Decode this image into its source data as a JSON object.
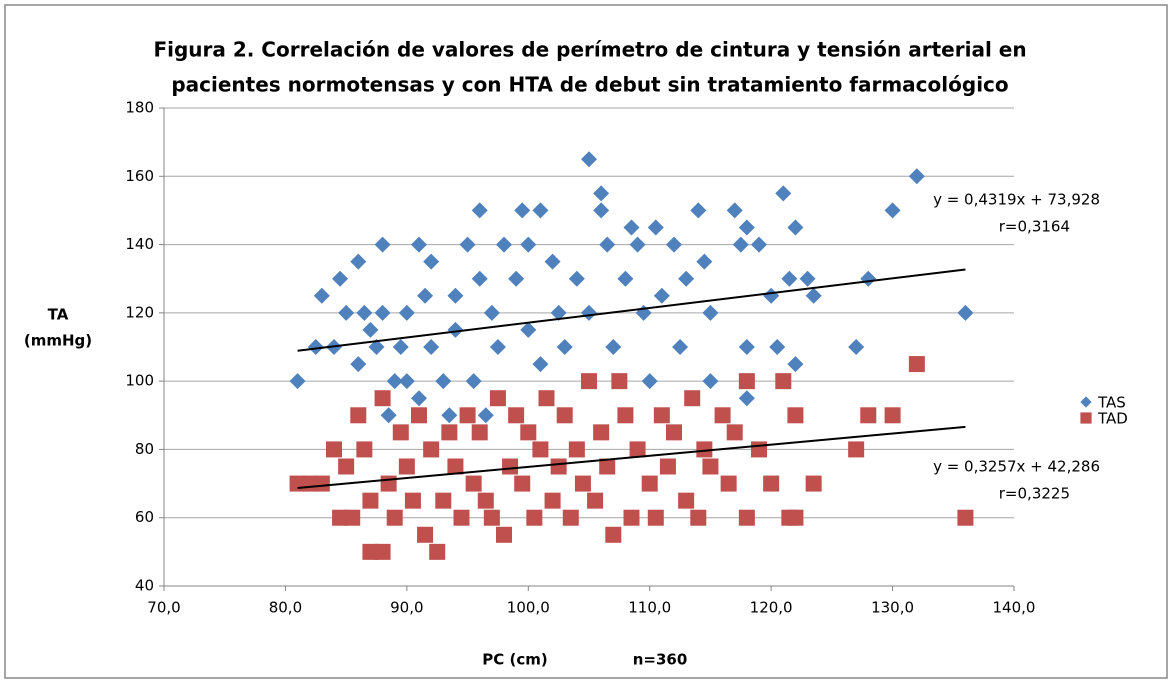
{
  "chart_data": {
    "type": "scatter",
    "title": [
      "Figura 2. Correlación de valores de perímetro de cintura y tensión arterial en",
      "pacientes normotensas y con HTA de debut sin tratamiento farmacológico"
    ],
    "x_label": "PC (cm)",
    "annotation": "n=360",
    "y_label": [
      "TA",
      "(mmHg)"
    ],
    "xlim": [
      70,
      140
    ],
    "xticks": [
      {
        "value": 70,
        "label": "70,0"
      },
      {
        "value": 80,
        "label": "80,0"
      },
      {
        "value": 90,
        "label": "90,0"
      },
      {
        "value": 100,
        "label": "100,0"
      },
      {
        "value": 110,
        "label": "110,0"
      },
      {
        "value": 120,
        "label": "120,0"
      },
      {
        "value": 130,
        "label": "130,0"
      },
      {
        "value": 140,
        "label": "140,0"
      }
    ],
    "ylim": [
      40,
      180
    ],
    "yticks": [
      40,
      60,
      80,
      100,
      120,
      140,
      160,
      180
    ],
    "grid": true,
    "legend": "right",
    "series": [
      {
        "name": "TAS",
        "color": "#4f81bd",
        "marker": "diamond",
        "x": [
          81,
          82.5,
          83,
          84,
          84.5,
          85,
          86,
          86,
          86.5,
          87,
          87.5,
          88,
          88,
          88.5,
          89,
          89.5,
          90,
          90,
          91,
          91,
          91.5,
          92,
          92,
          93,
          93.5,
          94,
          94,
          95,
          95.5,
          96,
          96,
          96.5,
          97,
          97.5,
          98,
          99,
          99.5,
          100,
          100,
          101,
          101,
          102,
          102.5,
          103,
          104,
          105,
          105,
          106,
          106,
          106.5,
          107,
          108,
          108.5,
          109,
          109.5,
          110,
          110.5,
          111,
          112,
          112.5,
          113,
          114,
          114.5,
          115,
          115,
          117,
          117.5,
          118,
          118,
          118,
          119,
          120,
          120.5,
          121,
          121.5,
          122,
          122,
          123,
          123.5,
          127,
          128,
          130,
          132,
          136
        ],
        "values": [
          100,
          110,
          125,
          110,
          130,
          120,
          135,
          105,
          120,
          115,
          110,
          140,
          120,
          90,
          100,
          110,
          120,
          100,
          140,
          95,
          125,
          135,
          110,
          100,
          90,
          125,
          115,
          140,
          100,
          150,
          130,
          90,
          120,
          110,
          140,
          130,
          150,
          140,
          115,
          150,
          105,
          135,
          120,
          110,
          130,
          165,
          120,
          155,
          150,
          140,
          110,
          130,
          145,
          140,
          120,
          100,
          145,
          125,
          140,
          110,
          130,
          150,
          135,
          100,
          120,
          150,
          140,
          145,
          110,
          95,
          140,
          125,
          110,
          155,
          130,
          145,
          105,
          130,
          125,
          110,
          130,
          150,
          160,
          120
        ],
        "trend": {
          "x": [
            81,
            136
          ],
          "values": [
            108.9,
            132.7
          ]
        },
        "equation": "y = 0,4319x + 73,928",
        "r": "r=0,3164"
      },
      {
        "name": "TAD",
        "color": "#c0504d",
        "marker": "square",
        "x": [
          81,
          82,
          83,
          84,
          84.5,
          85,
          85.5,
          86,
          86.5,
          87,
          87,
          88,
          88,
          88.5,
          89,
          89.5,
          90,
          90.5,
          91,
          91.5,
          92,
          92.5,
          93,
          93.5,
          94,
          94.5,
          95,
          95.5,
          96,
          96.5,
          97,
          97.5,
          98,
          98.5,
          99,
          99.5,
          100,
          100.5,
          101,
          101.5,
          102,
          102.5,
          103,
          103.5,
          104,
          104.5,
          105,
          105.5,
          106,
          106.5,
          107,
          107.5,
          108,
          108.5,
          109,
          110,
          110.5,
          111,
          111.5,
          112,
          113,
          113.5,
          114,
          114.5,
          115,
          116,
          116.5,
          117,
          118,
          118,
          119,
          120,
          121,
          121.5,
          122,
          122,
          123.5,
          127,
          128,
          130,
          132,
          136
        ],
        "values": [
          70,
          70,
          70,
          80,
          60,
          75,
          60,
          90,
          80,
          50,
          65,
          95,
          50,
          70,
          60,
          85,
          75,
          65,
          90,
          55,
          80,
          50,
          65,
          85,
          75,
          60,
          90,
          70,
          85,
          65,
          60,
          95,
          55,
          75,
          90,
          70,
          85,
          60,
          80,
          95,
          65,
          75,
          90,
          60,
          80,
          70,
          100,
          65,
          85,
          75,
          55,
          100,
          90,
          60,
          80,
          70,
          60,
          90,
          75,
          85,
          65,
          95,
          60,
          80,
          75,
          90,
          70,
          85,
          100,
          60,
          80,
          70,
          100,
          60,
          90,
          60,
          70,
          80,
          90,
          90,
          105,
          60
        ],
        "trend": {
          "x": [
            81,
            136
          ],
          "values": [
            68.7,
            86.6
          ]
        },
        "equation": "y = 0,3257x + 42,286",
        "r": "r=0,3225"
      }
    ]
  }
}
